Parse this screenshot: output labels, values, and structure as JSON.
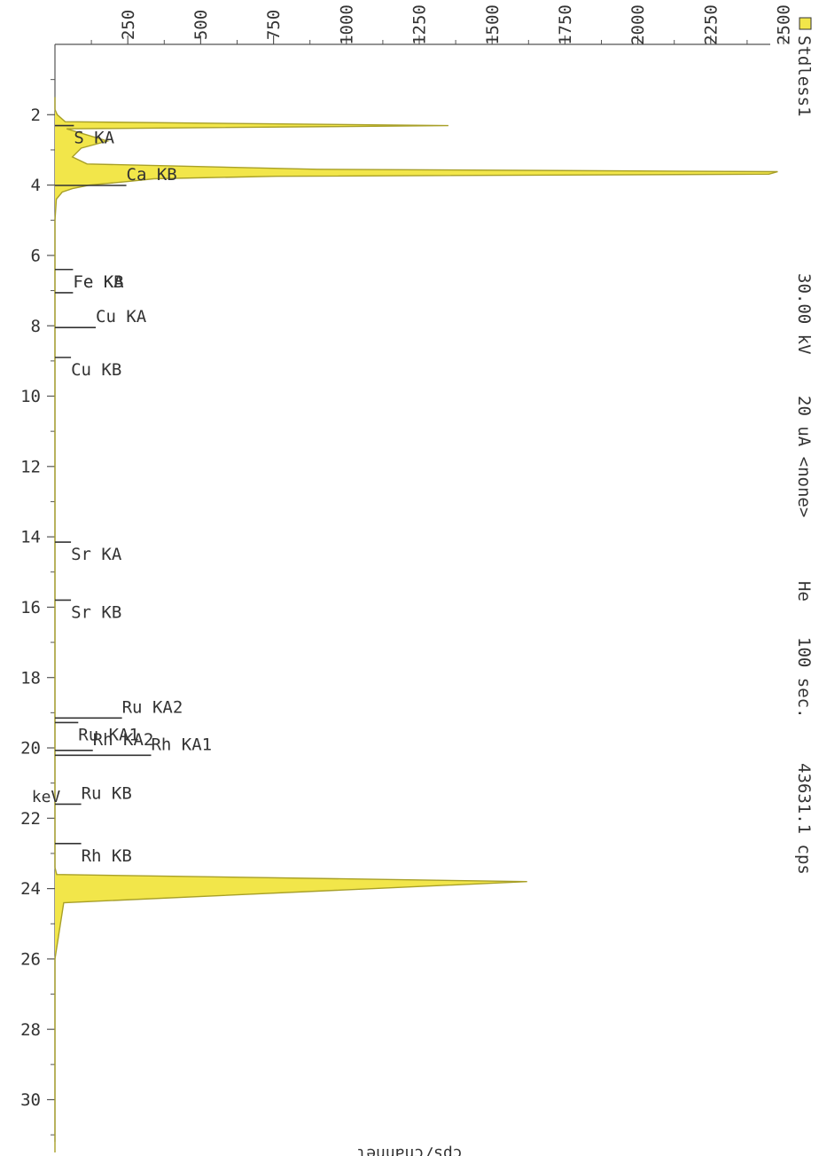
{
  "header": {
    "sample": "Stdless1",
    "voltage": "30.00 kV",
    "current": "20 uA <none>",
    "atmosphere": "He",
    "live_time": "100 sec.",
    "count_rate": "43631.1 cps"
  },
  "colors": {
    "spectrum_fill": "#f2e64a",
    "spectrum_line": "#a8a028",
    "axis": "#555555",
    "marker": "#333333"
  },
  "chart_data": {
    "type": "line",
    "xlabel": "keV",
    "ylabel": "cps/channel",
    "xlim": [
      0,
      32
    ],
    "ylim": [
      0,
      2500
    ],
    "x_ticks": [
      2,
      4,
      6,
      8,
      10,
      12,
      14,
      16,
      18,
      20,
      22,
      24,
      26,
      28,
      30
    ],
    "y_ticks": [
      250,
      500,
      750,
      1000,
      1250,
      1500,
      1750,
      2000,
      2250,
      2500
    ],
    "grid": false,
    "legend": "top-left",
    "series": [
      {
        "name": "Stdless1",
        "x": [
          1.5,
          1.85,
          2.0,
          2.2,
          2.31,
          2.4,
          2.6,
          2.75,
          2.95,
          3.2,
          3.4,
          3.55,
          3.62,
          3.69,
          3.75,
          3.82,
          3.9,
          4.0,
          4.1,
          4.2,
          4.4,
          5.0,
          6.0,
          6.4,
          7.06,
          8.05,
          8.9,
          10.0,
          12.0,
          14.15,
          15.8,
          18.0,
          19.2,
          20.2,
          21.2,
          22.7,
          23.4,
          23.6,
          23.8,
          24.4,
          26.0,
          28.0,
          30.0,
          31.5
        ],
        "values": [
          0,
          0,
          8,
          35,
          1350,
          40,
          120,
          180,
          90,
          60,
          110,
          900,
          2480,
          2450,
          760,
          340,
          250,
          120,
          60,
          25,
          5,
          0,
          0,
          0,
          0,
          0,
          0,
          0,
          0,
          0,
          0,
          0,
          0,
          0,
          0,
          0,
          0,
          6,
          1620,
          30,
          0,
          0,
          0,
          0
        ]
      }
    ],
    "markers": [
      {
        "label": "S KA",
        "energy": 2.31,
        "height": 65,
        "label_side": "below"
      },
      {
        "label": "Ca KB",
        "energy": 4.01,
        "height": 245,
        "label_side": "above"
      },
      {
        "label": "Fe KA",
        "energy": 6.4,
        "height": 62,
        "label_side": "below"
      },
      {
        "label": "Fe KB",
        "energy": 7.06,
        "height": 62,
        "label_side": "above"
      },
      {
        "label": "Cu KA",
        "energy": 8.05,
        "height": 140,
        "label_side": "above"
      },
      {
        "label": "Cu KB",
        "energy": 8.9,
        "height": 55,
        "label_side": "below"
      },
      {
        "label": "Sr KA",
        "energy": 14.15,
        "height": 55,
        "label_side": "below"
      },
      {
        "label": "Sr KB",
        "energy": 15.8,
        "height": 55,
        "label_side": "below"
      },
      {
        "label": "Ru KA2",
        "energy": 19.15,
        "height": 230,
        "label_side": "above"
      },
      {
        "label": "Ru KA1",
        "energy": 19.28,
        "height": 80,
        "label_side": "below"
      },
      {
        "label": "Rh KA2",
        "energy": 20.07,
        "height": 130,
        "label_side": "above"
      },
      {
        "label": "Rh KA1",
        "energy": 20.21,
        "height": 330,
        "label_side": "above"
      },
      {
        "label": "Ru KB",
        "energy": 21.6,
        "height": 90,
        "label_side": "above"
      },
      {
        "label": "Rh KB",
        "energy": 22.72,
        "height": 90,
        "label_side": "below"
      }
    ]
  }
}
